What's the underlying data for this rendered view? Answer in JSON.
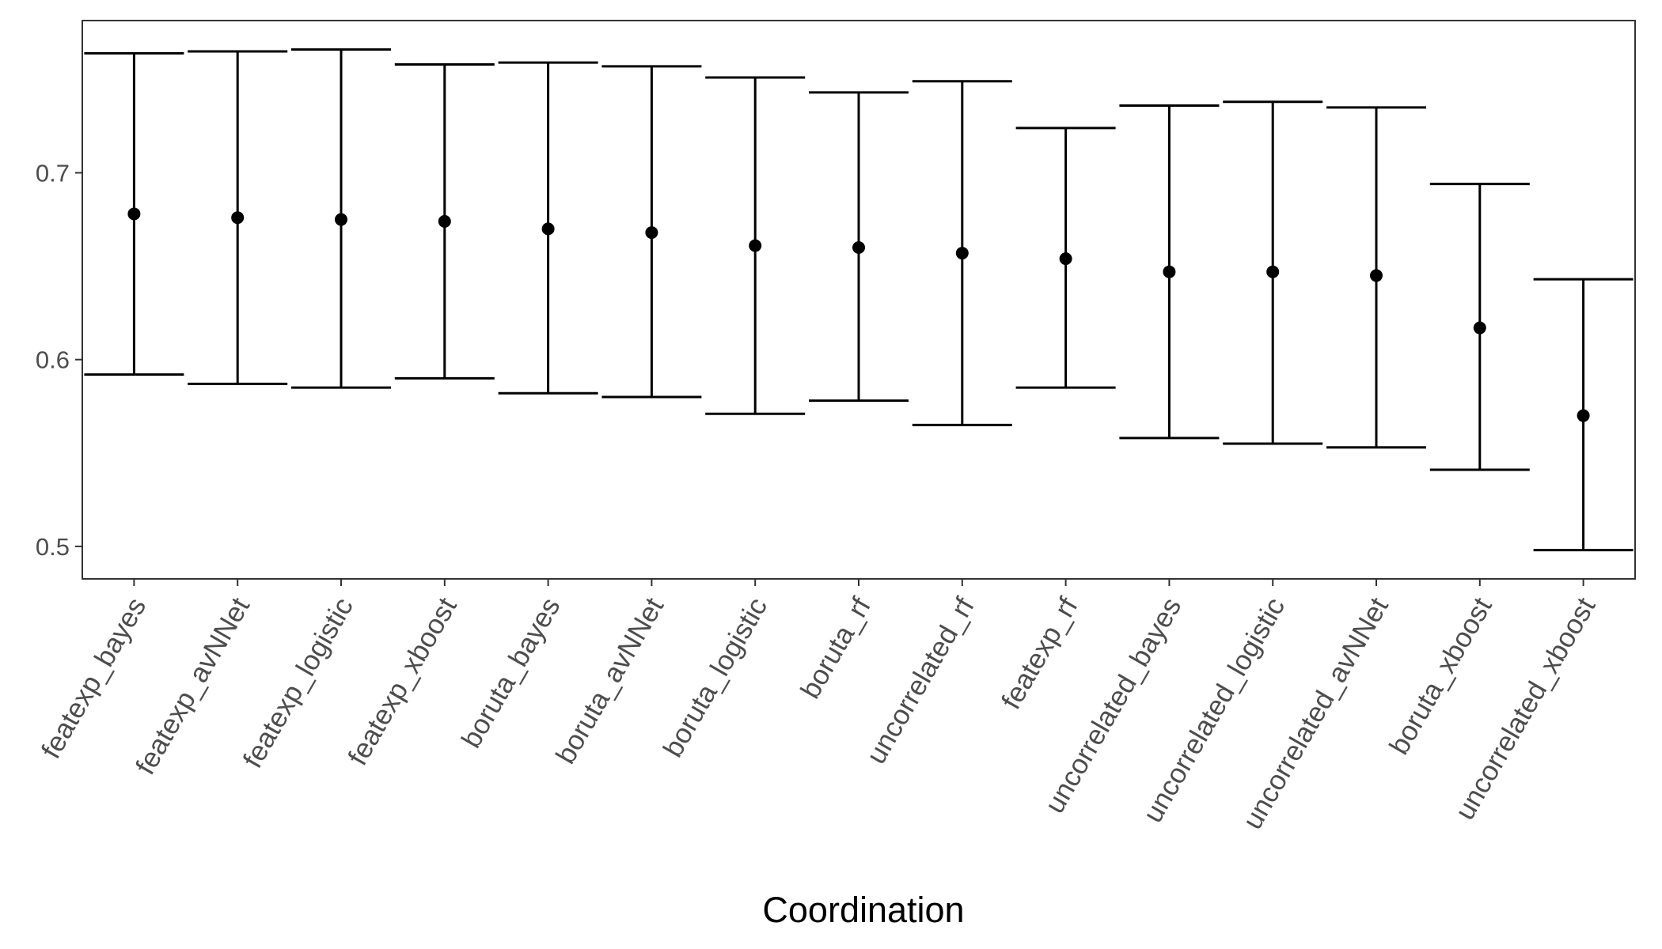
{
  "chart_data": {
    "type": "errorbar",
    "title": "",
    "xlabel": "Coordination",
    "ylabel": "",
    "categories": [
      "featexp_bayes",
      "featexp_avNNet",
      "featexp_logistic",
      "featexp_xboost",
      "boruta_bayes",
      "boruta_avNNet",
      "boruta_logistic",
      "boruta_rf",
      "uncorrelated_rf",
      "featexp_rf",
      "uncorrelated_bayes",
      "uncorrelated_logistic",
      "uncorrelated_avNNet",
      "boruta_xboost",
      "uncorrelated_xboost"
    ],
    "values": [
      0.678,
      0.676,
      0.675,
      0.674,
      0.67,
      0.668,
      0.661,
      0.66,
      0.657,
      0.654,
      0.647,
      0.647,
      0.645,
      0.617,
      0.57
    ],
    "lower": [
      0.592,
      0.587,
      0.585,
      0.59,
      0.582,
      0.58,
      0.571,
      0.578,
      0.565,
      0.585,
      0.558,
      0.555,
      0.553,
      0.541,
      0.498
    ],
    "upper": [
      0.764,
      0.765,
      0.766,
      0.758,
      0.759,
      0.757,
      0.751,
      0.743,
      0.749,
      0.724,
      0.736,
      0.738,
      0.735,
      0.694,
      0.643
    ],
    "yticks": [
      0.5,
      0.6,
      0.7
    ],
    "ytick_labels": [
      "0.5",
      "0.6",
      "0.7"
    ],
    "ylim": [
      0.4826,
      0.7815
    ],
    "grid": false,
    "legend": "none",
    "colors": {
      "marks": "#000000",
      "panel_border": "#333333",
      "tick_text": "#4d4d4d"
    }
  }
}
